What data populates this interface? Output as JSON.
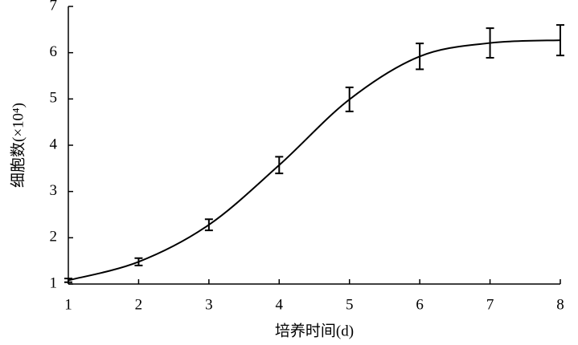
{
  "chart_data": {
    "type": "line",
    "smooth": true,
    "x_label": "培养时间(d)",
    "y_label": "细胞数(×10⁴)",
    "x": [
      1,
      2,
      3,
      4,
      5,
      6,
      7,
      8
    ],
    "values": [
      1.08,
      1.48,
      2.28,
      3.57,
      4.99,
      5.92,
      6.21,
      6.27
    ],
    "errors": [
      0.04,
      0.08,
      0.12,
      0.18,
      0.26,
      0.28,
      0.32,
      0.33
    ],
    "color": "#000000",
    "xlim": [
      1,
      8
    ],
    "xticks": [
      1,
      2,
      3,
      4,
      5,
      6,
      7,
      8
    ],
    "ylim": [
      1,
      7
    ],
    "yticks": [
      1,
      2,
      3,
      4,
      5,
      6,
      7
    ],
    "grid": false
  }
}
